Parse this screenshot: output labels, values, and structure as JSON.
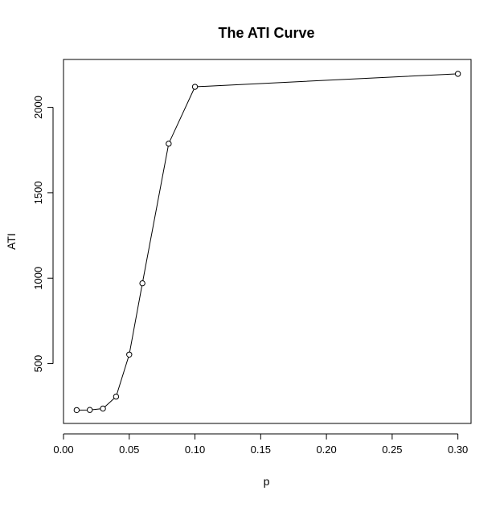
{
  "chart_data": {
    "type": "line",
    "title": "The ATI Curve",
    "xlabel": "p",
    "ylabel": "ATI",
    "xlim": [
      0.0,
      0.31
    ],
    "ylim": [
      150,
      2280
    ],
    "x_ticks": [
      0.0,
      0.05,
      0.1,
      0.15,
      0.2,
      0.25,
      0.3
    ],
    "x_tick_labels": [
      "0.00",
      "0.05",
      "0.10",
      "0.15",
      "0.20",
      "0.25",
      "0.30"
    ],
    "y_ticks": [
      500,
      1000,
      1500,
      2000
    ],
    "y_tick_labels": [
      "500",
      "1000",
      "1500",
      "2000"
    ],
    "grid": false,
    "legend": "none",
    "series": [
      {
        "x": [
          0.01,
          0.02,
          0.03,
          0.04,
          0.05,
          0.06,
          0.08,
          0.1,
          0.3
        ],
        "y": [
          228,
          229,
          237,
          307,
          553,
          970,
          1787,
          2120,
          2196
        ]
      }
    ],
    "colors": {
      "line": "#000000",
      "marker": "#000000",
      "background": "#ffffff"
    }
  }
}
